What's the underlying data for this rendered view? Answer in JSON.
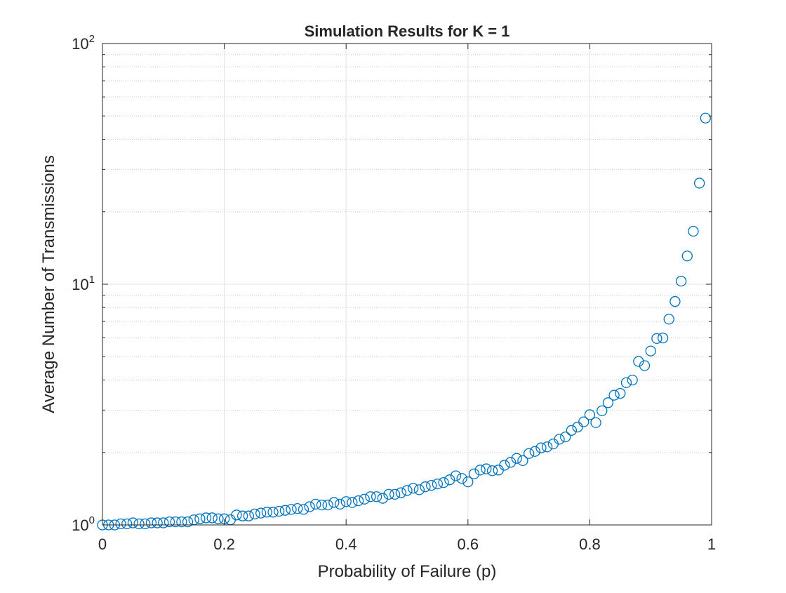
{
  "chart_data": {
    "type": "scatter",
    "title": "Simulation Results for K = 1",
    "xlabel": "Probability of Failure (p)",
    "ylabel": "Average Number of Transmissions",
    "xlim": [
      0,
      1
    ],
    "ylim": [
      1,
      100
    ],
    "yscale": "log",
    "grid": true,
    "marker": "open-circle",
    "colors": {
      "marker": "#0072BD",
      "grid": "#e3e3e3",
      "axis": "#262626"
    },
    "x_ticks": [
      "0",
      "0.2",
      "0.4",
      "0.6",
      "0.8",
      "1"
    ],
    "y_ticks": [
      {
        "base": "10",
        "exp": "0"
      },
      {
        "base": "10",
        "exp": "1"
      },
      {
        "base": "10",
        "exp": "2"
      }
    ],
    "series": [
      {
        "x": [
          0,
          0.01,
          0.02,
          0.03,
          0.04,
          0.05,
          0.06,
          0.07,
          0.08,
          0.09,
          0.1,
          0.11,
          0.12,
          0.13,
          0.14,
          0.15,
          0.16,
          0.17,
          0.18,
          0.19,
          0.2,
          0.21,
          0.22,
          0.23,
          0.24,
          0.25,
          0.26,
          0.27,
          0.28,
          0.29,
          0.3,
          0.31,
          0.32,
          0.33,
          0.34,
          0.35,
          0.36,
          0.37,
          0.38,
          0.39,
          0.4,
          0.41,
          0.42,
          0.43,
          0.44,
          0.45,
          0.46,
          0.47,
          0.48,
          0.49,
          0.5,
          0.51,
          0.52,
          0.53,
          0.54,
          0.55,
          0.56,
          0.57,
          0.58,
          0.59,
          0.6,
          0.61,
          0.62,
          0.63,
          0.64,
          0.65,
          0.66,
          0.67,
          0.68,
          0.69,
          0.7,
          0.71,
          0.72,
          0.73,
          0.74,
          0.75,
          0.76,
          0.77,
          0.78,
          0.79,
          0.8,
          0.81,
          0.82,
          0.83,
          0.84,
          0.85,
          0.86,
          0.87,
          0.88,
          0.89,
          0.9,
          0.91,
          0.92,
          0.93,
          0.94,
          0.95,
          0.96,
          0.97,
          0.98,
          0.99
        ],
        "y": [
          1.0,
          1.0,
          1.0,
          1.01,
          1.01,
          1.02,
          1.01,
          1.01,
          1.02,
          1.02,
          1.02,
          1.03,
          1.03,
          1.03,
          1.03,
          1.05,
          1.06,
          1.07,
          1.07,
          1.06,
          1.06,
          1.05,
          1.1,
          1.09,
          1.09,
          1.11,
          1.12,
          1.13,
          1.13,
          1.14,
          1.15,
          1.16,
          1.17,
          1.16,
          1.19,
          1.22,
          1.21,
          1.21,
          1.24,
          1.22,
          1.25,
          1.24,
          1.26,
          1.28,
          1.31,
          1.31,
          1.29,
          1.34,
          1.34,
          1.36,
          1.39,
          1.42,
          1.4,
          1.44,
          1.46,
          1.48,
          1.5,
          1.54,
          1.6,
          1.56,
          1.51,
          1.63,
          1.69,
          1.71,
          1.68,
          1.69,
          1.77,
          1.82,
          1.89,
          1.85,
          1.98,
          2.02,
          2.09,
          2.11,
          2.17,
          2.27,
          2.32,
          2.47,
          2.55,
          2.68,
          2.87,
          2.66,
          2.98,
          3.22,
          3.46,
          3.52,
          3.9,
          4.0,
          4.78,
          4.59,
          5.28,
          5.95,
          5.98,
          7.16,
          8.48,
          10.3,
          13.1,
          16.6,
          26.3,
          49.0
        ]
      }
    ]
  }
}
